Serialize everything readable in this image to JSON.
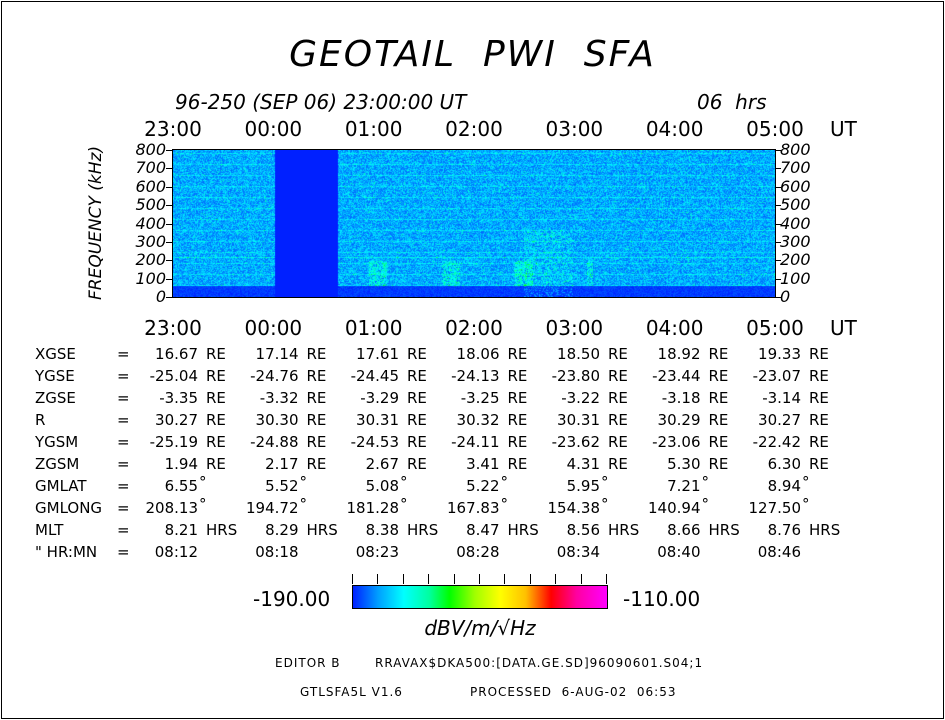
{
  "title": "GEOTAIL  PWI  SFA",
  "subtitle": "96-250 (SEP 06) 23:00:00 UT",
  "duration": "06  hrs",
  "chart_data": {
    "type": "heatmap",
    "title": "GEOTAIL  PWI  SFA",
    "ylabel": "FREQUENCY (kHz)",
    "xlabel": "UT",
    "x_ticks": [
      "23:00",
      "00:00",
      "01:00",
      "02:00",
      "03:00",
      "04:00",
      "05:00"
    ],
    "y_ticks": [
      "0",
      "100",
      "200",
      "300",
      "400",
      "500",
      "600",
      "700",
      "800"
    ],
    "ylim": [
      0,
      800
    ],
    "xlim": [
      "23:00",
      "05:00"
    ],
    "data_gap": [
      "00:01",
      "00:38"
    ],
    "colorbar": {
      "min": "-190.00",
      "max": "-110.00",
      "unit": "dBV/m/√Hz",
      "colors": [
        "#0020ff",
        "#00ffff",
        "#00ff00",
        "#ffff00",
        "#ff0000",
        "#ff00ff"
      ]
    }
  },
  "ephemeris": {
    "rows": [
      {
        "label": "XGSE",
        "unit": "RE",
        "values": [
          "16.67",
          "17.14",
          "17.61",
          "18.06",
          "18.50",
          "18.92",
          "19.33"
        ]
      },
      {
        "label": "YGSE",
        "unit": "RE",
        "values": [
          "-25.04",
          "-24.76",
          "-24.45",
          "-24.13",
          "-23.80",
          "-23.44",
          "-23.07"
        ]
      },
      {
        "label": "ZGSE",
        "unit": "RE",
        "values": [
          "-3.35",
          "-3.32",
          "-3.29",
          "-3.25",
          "-3.22",
          "-3.18",
          "-3.14"
        ]
      },
      {
        "label": "R",
        "unit": "RE",
        "values": [
          "30.27",
          "30.30",
          "30.31",
          "30.32",
          "30.31",
          "30.29",
          "30.27"
        ]
      },
      {
        "label": "YGSM",
        "unit": "RE",
        "values": [
          "-25.19",
          "-24.88",
          "-24.53",
          "-24.11",
          "-23.62",
          "-23.06",
          "-22.42"
        ]
      },
      {
        "label": "ZGSM",
        "unit": "RE",
        "values": [
          "1.94",
          "2.17",
          "2.67",
          "3.41",
          "4.31",
          "5.30",
          "6.30"
        ]
      },
      {
        "label": "GMLAT",
        "unit": "°",
        "values": [
          "6.55",
          "5.52",
          "5.08",
          "5.22",
          "5.95",
          "7.21",
          "8.94"
        ]
      },
      {
        "label": "GMLONG",
        "unit": "°",
        "values": [
          "208.13",
          "194.72",
          "181.28",
          "167.83",
          "154.38",
          "140.94",
          "127.50"
        ]
      },
      {
        "label": "MLT",
        "unit": "HRS",
        "values": [
          "8.21",
          "8.29",
          "8.38",
          "8.47",
          "8.56",
          "8.66",
          "8.76"
        ]
      },
      {
        "label": "\" HR:MN",
        "unit": "",
        "values": [
          "08:12",
          "08:18",
          "08:23",
          "08:28",
          "08:34",
          "08:40",
          "08:46"
        ]
      }
    ],
    "equals": "="
  },
  "footer": {
    "editor": "EDITOR B",
    "file": "RRAVAX$DKA500:[DATA.GE.SD]96090601.S04;1",
    "program": "GTLSFA5L V1.6",
    "processed": "PROCESSED  6-AUG-02  06:53"
  }
}
